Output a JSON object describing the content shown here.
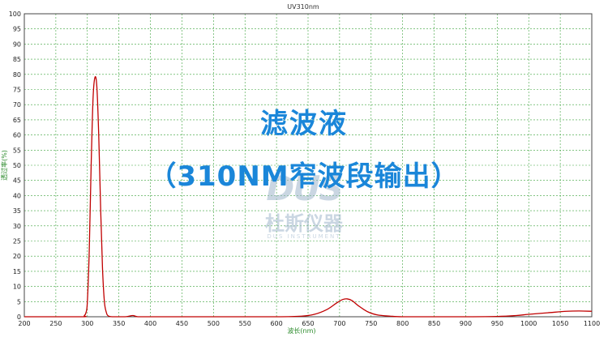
{
  "colors": {
    "curve": "#c00000",
    "grid": "#3aa23a",
    "axis_title": "#2a8a2a",
    "overlay": "#1a86d9"
  },
  "overlay": {
    "line1": "滤波液",
    "line2": "（310NM窄波段输出）"
  },
  "watermark": {
    "logo": "DUS",
    "company": "杜斯仪器",
    "tagline": "DUS INSTRUMENT"
  },
  "chart_data": {
    "type": "line",
    "title": "UV310nm",
    "xlabel": "波长(nm)",
    "ylabel": "透过率(%)",
    "xlim": [
      200,
      1100
    ],
    "ylim": [
      0,
      100
    ],
    "grid": true,
    "xticks": [
      "200",
      "250",
      "300",
      "350",
      "400",
      "450",
      "500",
      "550",
      "600",
      "650",
      "700",
      "750",
      "800",
      "850",
      "900",
      "950",
      "1000",
      "1050",
      "1100"
    ],
    "yticks": [
      "0",
      "5",
      "10",
      "15",
      "20",
      "25",
      "30",
      "35",
      "40",
      "45",
      "50",
      "55",
      "60",
      "65",
      "70",
      "75",
      "80",
      "85",
      "90",
      "95",
      "100"
    ],
    "series": [
      {
        "x": [
          200,
          290,
          295,
          298,
          300,
          303,
          306,
          309,
          312,
          315,
          318,
          321,
          324,
          327,
          330,
          333,
          340,
          360,
          372,
          380,
          400,
          500,
          600,
          640,
          660,
          680,
          695,
          705,
          712,
          720,
          730,
          745,
          760,
          780,
          800,
          850,
          900,
          950,
          980,
          1000,
          1030,
          1060,
          1080,
          1100
        ],
        "y": [
          0,
          0,
          0.3,
          1.5,
          5,
          22,
          50,
          72,
          79,
          76,
          60,
          36,
          16,
          5,
          1.5,
          0.3,
          0,
          0,
          0.4,
          0,
          0,
          0,
          0,
          0.2,
          0.8,
          2.4,
          4.5,
          5.7,
          5.9,
          5.3,
          3.6,
          1.6,
          0.6,
          0.2,
          0,
          0,
          0,
          0.1,
          0.4,
          0.8,
          1.3,
          1.8,
          1.9,
          1.8
        ]
      }
    ]
  }
}
